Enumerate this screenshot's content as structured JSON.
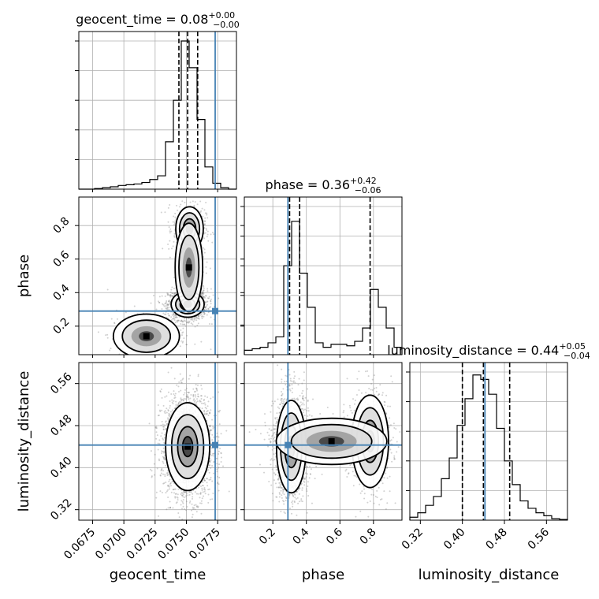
{
  "chart_data": {
    "type": "corner",
    "grid": true,
    "truth_color": "#4682b4",
    "contour_color": "#000000",
    "parameters": [
      {
        "key": "geocent_time",
        "label": "geocent_time",
        "range": [
          0.0664,
          0.079
        ],
        "ticks": [
          0.0675,
          0.07,
          0.0725,
          0.075,
          0.0775
        ],
        "tick_labels": [
          "0.0675",
          "0.0700",
          "0.0725",
          "0.0750",
          "0.0775"
        ],
        "truth": 0.0773,
        "title_prefix": "geocent_time = 0.08",
        "title_plus": "+0.00",
        "title_minus": "−0.00",
        "quantiles": [
          0.0744,
          0.0751,
          0.0759
        ],
        "hist": [
          0,
          0,
          0.004,
          0.01,
          0.016,
          0.025,
          0.03,
          0.035,
          0.045,
          0.065,
          0.09,
          0.32,
          0.6,
          1.0,
          0.82,
          0.47,
          0.15,
          0.04,
          0.01,
          0
        ]
      },
      {
        "key": "phase",
        "label": "phase",
        "range": [
          0.03,
          0.97
        ],
        "ticks": [
          0.2,
          0.4,
          0.6,
          0.8
        ],
        "tick_labels": [
          "0.2",
          "0.4",
          "0.6",
          "0.8"
        ],
        "truth": 0.29,
        "title_prefix": "phase = 0.36",
        "title_plus": "+0.42",
        "title_minus": "−0.06",
        "quantiles": [
          0.3,
          0.36,
          0.78
        ],
        "hist": [
          0.03,
          0.04,
          0.05,
          0.08,
          0.12,
          0.6,
          0.9,
          0.55,
          0.32,
          0.08,
          0.05,
          0.07,
          0.07,
          0.06,
          0.09,
          0.18,
          0.44,
          0.32,
          0.18,
          0.05
        ]
      },
      {
        "key": "luminosity_distance",
        "label": "luminosity_distance",
        "range": [
          0.3,
          0.6
        ],
        "ticks": [
          0.32,
          0.4,
          0.48,
          0.56
        ],
        "tick_labels": [
          "0.32",
          "0.40",
          "0.48",
          "0.56"
        ],
        "truth": 0.443,
        "title_prefix": "luminosity_distance = 0.44",
        "title_plus": "+0.05",
        "title_minus": "−0.04",
        "quantiles": [
          0.4,
          0.44,
          0.49
        ],
        "hist": [
          0.02,
          0.05,
          0.1,
          0.16,
          0.28,
          0.42,
          0.64,
          0.82,
          0.98,
          0.95,
          0.85,
          0.62,
          0.4,
          0.24,
          0.13,
          0.08,
          0.05,
          0.03,
          0.01,
          0.005
        ]
      }
    ],
    "pairs": [
      {
        "x": "geocent_time",
        "y": "phase",
        "blobs": [
          {
            "mx": 0.0751,
            "my": 0.33,
            "sx": 0.0006,
            "sy": 0.035,
            "w": 0.6
          },
          {
            "mx": 0.07525,
            "my": 0.78,
            "sx": 0.0005,
            "sy": 0.06,
            "w": 0.2
          },
          {
            "mx": 0.0752,
            "my": 0.55,
            "sx": 0.0005,
            "sy": 0.12,
            "w": 0.12
          },
          {
            "mx": 0.0718,
            "my": 0.14,
            "sx": 0.0012,
            "sy": 0.06,
            "w": 0.08
          }
        ]
      },
      {
        "x": "geocent_time",
        "y": "luminosity_distance",
        "blobs": [
          {
            "mx": 0.0751,
            "my": 0.44,
            "sx": 0.0008,
            "sy": 0.038,
            "w": 1.0
          }
        ]
      },
      {
        "x": "phase",
        "y": "luminosity_distance",
        "blobs": [
          {
            "mx": 0.31,
            "my": 0.44,
            "sx": 0.04,
            "sy": 0.04,
            "w": 0.65
          },
          {
            "mx": 0.78,
            "my": 0.45,
            "sx": 0.05,
            "sy": 0.04,
            "w": 0.25
          },
          {
            "mx": 0.55,
            "my": 0.45,
            "sx": 0.15,
            "sy": 0.02,
            "w": 0.1
          }
        ]
      }
    ]
  }
}
